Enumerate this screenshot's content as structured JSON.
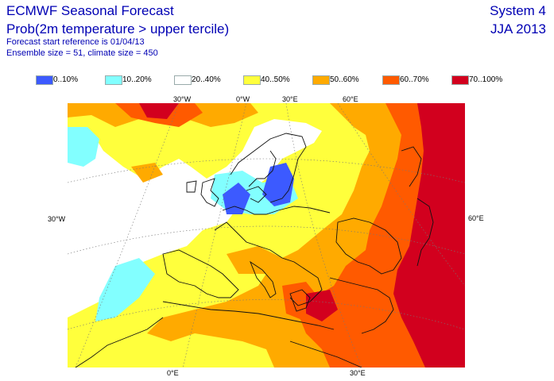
{
  "header": {
    "title": "ECMWF Seasonal Forecast",
    "subtitle": "Prob(2m temperature > upper tercile)",
    "start_ref": "Forecast start reference is 01/04/13",
    "ensemble": "Ensemble size = 51, climate size = 450",
    "system": "System 4",
    "season": "JJA 2013"
  },
  "legend": [
    {
      "label": "0..10%",
      "color": "#3c5aff"
    },
    {
      "label": "10..20%",
      "color": "#82ffff"
    },
    {
      "label": "20..40%",
      "color": "#ffffff"
    },
    {
      "label": "40..50%",
      "color": "#ffff3c"
    },
    {
      "label": "50..60%",
      "color": "#ffaa00"
    },
    {
      "label": "60..70%",
      "color": "#ff5a00"
    },
    {
      "label": "70..100%",
      "color": "#d2001e"
    }
  ],
  "axis_labels": {
    "top_30w": "30°W",
    "top_0w": "0°W",
    "top_30e": "30°E",
    "top_60e": "60°E",
    "left_30w": "30°W",
    "right_60e": "60°E",
    "bottom_0e": "0°E",
    "bottom_30e": "30°E"
  }
}
